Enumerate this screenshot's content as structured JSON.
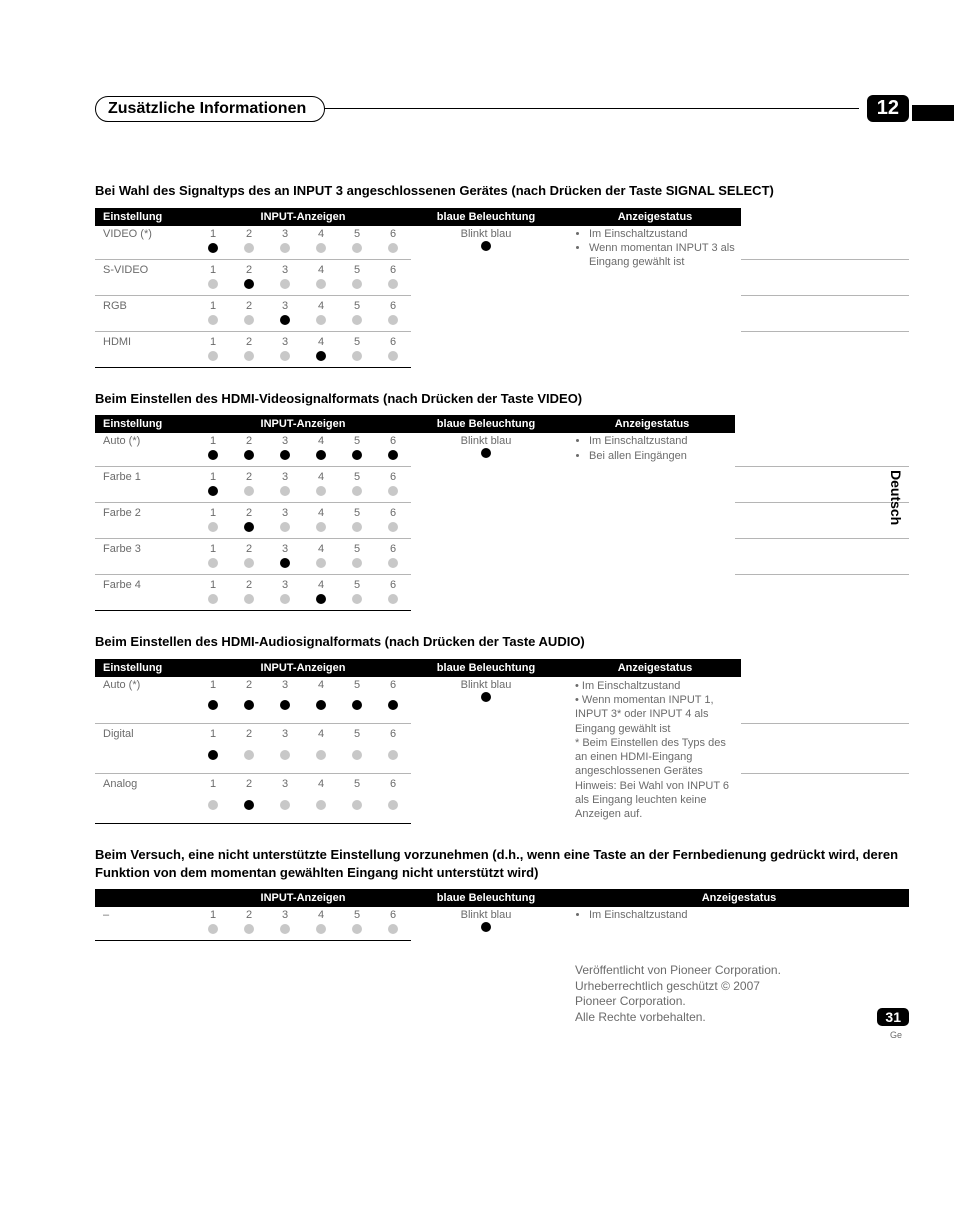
{
  "chapter": {
    "title": "Zusätzliche Informationen",
    "number": "12"
  },
  "side_label": "Deutsch",
  "page": {
    "number": "31",
    "lang": "Ge"
  },
  "headers": {
    "setting": "Einstellung",
    "input_ind": "INPUT-Anzeigen",
    "blue": "blaue Beleuchtung",
    "status": "Anzeigestatus"
  },
  "nums": [
    "1",
    "2",
    "3",
    "4",
    "5",
    "6"
  ],
  "section1": {
    "heading": "Bei Wahl des Signaltyps des an INPUT 3 angeschlossenen Gerätes (nach Drücken der Taste SIGNAL SELECT)",
    "rows": [
      {
        "label": "VIDEO (*)",
        "dots": [
          1,
          0,
          0,
          0,
          0,
          0
        ]
      },
      {
        "label": "S-VIDEO",
        "dots": [
          0,
          1,
          0,
          0,
          0,
          0
        ]
      },
      {
        "label": "RGB",
        "dots": [
          0,
          0,
          1,
          0,
          0,
          0
        ]
      },
      {
        "label": "HDMI",
        "dots": [
          0,
          0,
          0,
          1,
          0,
          0
        ]
      }
    ],
    "blue_label": "Blinkt blau",
    "status": [
      "Im Einschaltzustand",
      "Wenn momentan INPUT 3 als Eingang gewählt ist"
    ]
  },
  "section2": {
    "heading": "Beim Einstellen des HDMI-Videosignalformats (nach Drücken der Taste VIDEO)",
    "rows": [
      {
        "label": "Auto (*)",
        "dots": [
          1,
          1,
          1,
          1,
          1,
          1
        ]
      },
      {
        "label": "Farbe 1",
        "dots": [
          1,
          0,
          0,
          0,
          0,
          0
        ]
      },
      {
        "label": "Farbe 2",
        "dots": [
          0,
          1,
          0,
          0,
          0,
          0
        ]
      },
      {
        "label": "Farbe 3",
        "dots": [
          0,
          0,
          1,
          0,
          0,
          0
        ]
      },
      {
        "label": "Farbe 4",
        "dots": [
          0,
          0,
          0,
          1,
          0,
          0
        ]
      }
    ],
    "blue_label": "Blinkt blau",
    "status": [
      "Im Einschaltzustand",
      "Bei allen Eingängen"
    ]
  },
  "section3": {
    "heading": "Beim Einstellen des HDMI-Audiosignalformats (nach Drücken der Taste AUDIO)",
    "rows": [
      {
        "label": "Auto (*)",
        "dots": [
          1,
          1,
          1,
          1,
          1,
          1
        ]
      },
      {
        "label": "Digital",
        "dots": [
          1,
          0,
          0,
          0,
          0,
          0
        ]
      },
      {
        "label": "Analog",
        "dots": [
          0,
          1,
          0,
          0,
          0,
          0
        ]
      }
    ],
    "blue_label": "Blinkt blau",
    "status_lines": [
      "• Im Einschaltzustand",
      "• Wenn momentan INPUT 1, INPUT 3* oder INPUT 4 als Eingang gewählt ist",
      "* Beim Einstellen des Typs des an einen HDMI-Eingang angeschlossenen Gerätes",
      "Hinweis: Bei Wahl von INPUT 6 als Eingang leuchten keine Anzeigen auf."
    ]
  },
  "section4": {
    "heading": "Beim Versuch, eine nicht unterstützte Einstellung vorzunehmen (d.h., wenn eine Taste an der Fernbedienung gedrückt wird, deren Funktion von dem momentan gewählten Eingang nicht unterstützt wird)",
    "row": {
      "label": "–",
      "dots": [
        0,
        0,
        0,
        0,
        0,
        0
      ]
    },
    "blue_label": "Blinkt blau",
    "status": [
      "Im Einschaltzustand"
    ]
  },
  "copyright": [
    "Veröffentlicht von Pioneer Corporation.",
    "Urheberrechtlich geschützt © 2007",
    "Pioneer Corporation.",
    "Alle Rechte vorbehalten."
  ]
}
